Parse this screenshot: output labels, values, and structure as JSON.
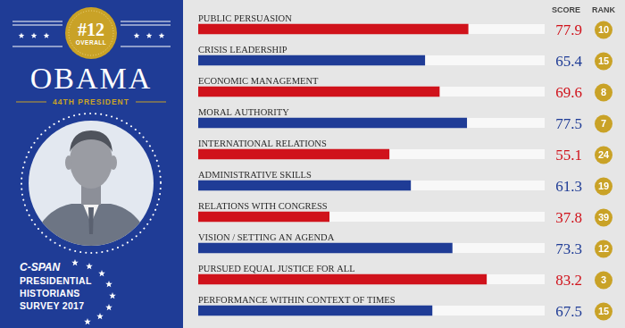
{
  "panel": {
    "rank": "#12",
    "rank_caption": "OVERALL",
    "name": "OBAMA",
    "subtitle": "44TH PRESIDENT",
    "logo": "C-SPAN",
    "survey": [
      "PRESIDENTIAL",
      "HISTORIANS",
      "SURVEY 2017"
    ]
  },
  "header": {
    "score": "SCORE",
    "rank": "RANK"
  },
  "chart_data": {
    "type": "bar",
    "orientation": "horizontal",
    "categories": [
      "PUBLIC PERSUASION",
      "CRISIS LEADERSHIP",
      "ECONOMIC MANAGEMENT",
      "MORAL AUTHORITY",
      "INTERNATIONAL RELATIONS",
      "ADMINISTRATIVE SKILLS",
      "RELATIONS WITH CONGRESS",
      "VISION / SETTING AN AGENDA",
      "PURSUED EQUAL JUSTICE FOR ALL",
      "PERFORMANCE WITHIN CONTEXT OF TIMES"
    ],
    "values": [
      77.9,
      65.4,
      69.6,
      77.5,
      55.1,
      61.3,
      37.8,
      73.3,
      83.2,
      67.5
    ],
    "ranks": [
      10,
      15,
      8,
      7,
      24,
      19,
      39,
      12,
      3,
      15
    ],
    "colors": [
      "#d0121b",
      "#1f3c96",
      "#d0121b",
      "#1f3c96",
      "#d0121b",
      "#1f3c96",
      "#d0121b",
      "#1f3c96",
      "#d0121b",
      "#1f3c96"
    ],
    "xlim": [
      0,
      100
    ],
    "grid": false,
    "tick_labels": false,
    "data_labels": true
  }
}
